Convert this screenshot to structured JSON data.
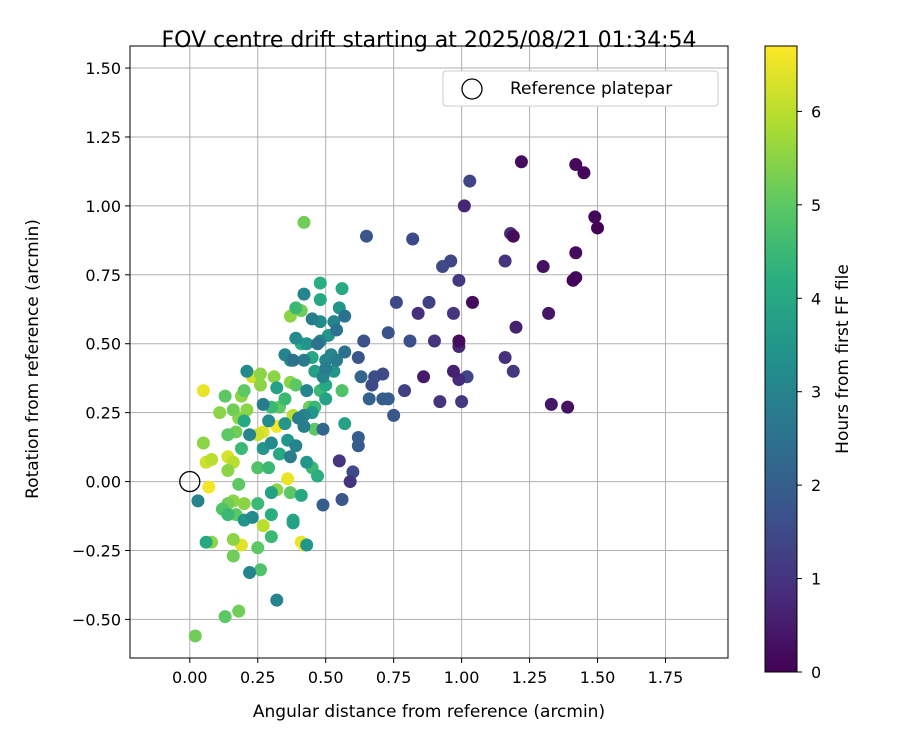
{
  "chart_data": {
    "type": "scatter",
    "title": "FOV centre drift starting at 2025/08/21 01:34:54",
    "xlabel": "Angular distance from reference (arcmin)",
    "ylabel": "Rotation from reference (arcmin)",
    "xlim": [
      -0.22,
      1.98
    ],
    "ylim": [
      -0.64,
      1.58
    ],
    "xticks": [
      "0.00",
      "0.25",
      "0.50",
      "0.75",
      "1.00",
      "1.25",
      "1.50",
      "1.75"
    ],
    "yticks": [
      "−0.50",
      "−0.25",
      "0.00",
      "0.25",
      "0.50",
      "0.75",
      "1.00",
      "1.25",
      "1.50"
    ],
    "grid": true,
    "legend": {
      "placement": "top-right",
      "entries": [
        "Reference platepar"
      ]
    },
    "reference_point": {
      "x": 0.0,
      "y": 0.0
    },
    "colorbar": {
      "label": "Hours from first FF file",
      "range": [
        0,
        6.7
      ],
      "ticks": [
        "0",
        "1",
        "2",
        "3",
        "4",
        "5",
        "6"
      ],
      "colormap": "viridis"
    },
    "points": [
      {
        "x": 1.22,
        "y": 1.16,
        "h": 0.2
      },
      {
        "x": 1.42,
        "y": 1.15,
        "h": 0.15
      },
      {
        "x": 1.45,
        "y": 1.12,
        "h": 0.1
      },
      {
        "x": 1.49,
        "y": 0.96,
        "h": 0.1
      },
      {
        "x": 1.5,
        "y": 0.92,
        "h": 0.05
      },
      {
        "x": 1.01,
        "y": 1.0,
        "h": 0.7
      },
      {
        "x": 1.03,
        "y": 1.09,
        "h": 1.4
      },
      {
        "x": 1.18,
        "y": 0.9,
        "h": 0.9
      },
      {
        "x": 1.19,
        "y": 0.89,
        "h": 0.2
      },
      {
        "x": 1.42,
        "y": 0.83,
        "h": 0.2
      },
      {
        "x": 1.42,
        "y": 0.74,
        "h": 0.15
      },
      {
        "x": 1.41,
        "y": 0.73,
        "h": 0.1
      },
      {
        "x": 1.3,
        "y": 0.78,
        "h": 0.3
      },
      {
        "x": 1.16,
        "y": 0.8,
        "h": 1.0
      },
      {
        "x": 0.65,
        "y": 0.89,
        "h": 1.8
      },
      {
        "x": 0.82,
        "y": 0.88,
        "h": 1.5
      },
      {
        "x": 0.96,
        "y": 0.8,
        "h": 1.4
      },
      {
        "x": 0.93,
        "y": 0.78,
        "h": 1.5
      },
      {
        "x": 0.99,
        "y": 0.73,
        "h": 1.1
      },
      {
        "x": 1.04,
        "y": 0.65,
        "h": 0.2
      },
      {
        "x": 0.76,
        "y": 0.65,
        "h": 1.5
      },
      {
        "x": 0.88,
        "y": 0.65,
        "h": 1.3
      },
      {
        "x": 0.84,
        "y": 0.61,
        "h": 0.9
      },
      {
        "x": 0.97,
        "y": 0.61,
        "h": 1.0
      },
      {
        "x": 1.2,
        "y": 0.56,
        "h": 0.6
      },
      {
        "x": 1.32,
        "y": 0.61,
        "h": 0.4
      },
      {
        "x": 0.73,
        "y": 0.54,
        "h": 1.7
      },
      {
        "x": 0.81,
        "y": 0.51,
        "h": 1.6
      },
      {
        "x": 0.9,
        "y": 0.51,
        "h": 1.0
      },
      {
        "x": 0.99,
        "y": 0.51,
        "h": 0.2
      },
      {
        "x": 0.99,
        "y": 0.49,
        "h": 0.7
      },
      {
        "x": 1.16,
        "y": 0.45,
        "h": 0.9
      },
      {
        "x": 1.19,
        "y": 0.4,
        "h": 1.1
      },
      {
        "x": 0.97,
        "y": 0.4,
        "h": 0.6
      },
      {
        "x": 0.99,
        "y": 0.37,
        "h": 0.8
      },
      {
        "x": 1.02,
        "y": 0.38,
        "h": 1.4
      },
      {
        "x": 0.86,
        "y": 0.38,
        "h": 0.5
      },
      {
        "x": 0.79,
        "y": 0.33,
        "h": 1.3
      },
      {
        "x": 0.92,
        "y": 0.29,
        "h": 1.0
      },
      {
        "x": 1.0,
        "y": 0.29,
        "h": 1.1
      },
      {
        "x": 1.33,
        "y": 0.28,
        "h": 0.4
      },
      {
        "x": 1.39,
        "y": 0.27,
        "h": 0.3
      },
      {
        "x": 0.62,
        "y": 0.45,
        "h": 1.8
      },
      {
        "x": 0.64,
        "y": 0.51,
        "h": 1.7
      },
      {
        "x": 0.68,
        "y": 0.38,
        "h": 1.6
      },
      {
        "x": 0.71,
        "y": 0.39,
        "h": 1.5
      },
      {
        "x": 0.67,
        "y": 0.35,
        "h": 1.5
      },
      {
        "x": 0.63,
        "y": 0.38,
        "h": 2.2
      },
      {
        "x": 0.66,
        "y": 0.3,
        "h": 2.1
      },
      {
        "x": 0.71,
        "y": 0.3,
        "h": 1.9
      },
      {
        "x": 0.73,
        "y": 0.3,
        "h": 2.0
      },
      {
        "x": 0.75,
        "y": 0.24,
        "h": 1.8
      },
      {
        "x": 0.62,
        "y": 0.16,
        "h": 2.0
      },
      {
        "x": 0.62,
        "y": 0.13,
        "h": 1.9
      },
      {
        "x": 0.55,
        "y": 0.075,
        "h": 1.0
      },
      {
        "x": 0.6,
        "y": 0.035,
        "h": 1.5
      },
      {
        "x": 0.56,
        "y": -0.065,
        "h": 1.8
      },
      {
        "x": 0.49,
        "y": -0.085,
        "h": 2.0
      },
      {
        "x": 0.59,
        "y": -0.0,
        "h": 1.0
      },
      {
        "x": 0.42,
        "y": 0.94,
        "h": 5.2
      },
      {
        "x": 0.48,
        "y": 0.72,
        "h": 4.2
      },
      {
        "x": 0.56,
        "y": 0.7,
        "h": 4.0
      },
      {
        "x": 0.42,
        "y": 0.68,
        "h": 3.0
      },
      {
        "x": 0.48,
        "y": 0.66,
        "h": 4.0
      },
      {
        "x": 0.55,
        "y": 0.63,
        "h": 3.5
      },
      {
        "x": 0.41,
        "y": 0.62,
        "h": 5.2
      },
      {
        "x": 0.37,
        "y": 0.6,
        "h": 5.5
      },
      {
        "x": 0.39,
        "y": 0.63,
        "h": 4.5
      },
      {
        "x": 0.45,
        "y": 0.59,
        "h": 2.8
      },
      {
        "x": 0.48,
        "y": 0.58,
        "h": 3.2
      },
      {
        "x": 0.53,
        "y": 0.58,
        "h": 3.0
      },
      {
        "x": 0.57,
        "y": 0.6,
        "h": 2.5
      },
      {
        "x": 0.54,
        "y": 0.55,
        "h": 2.5
      },
      {
        "x": 0.51,
        "y": 0.53,
        "h": 3.5
      },
      {
        "x": 0.39,
        "y": 0.52,
        "h": 3.2
      },
      {
        "x": 0.41,
        "y": 0.5,
        "h": 4.2
      },
      {
        "x": 0.43,
        "y": 0.5,
        "h": 3.5
      },
      {
        "x": 0.47,
        "y": 0.5,
        "h": 2.5
      },
      {
        "x": 0.48,
        "y": 0.51,
        "h": 3.0
      },
      {
        "x": 0.57,
        "y": 0.47,
        "h": 2.5
      },
      {
        "x": 0.52,
        "y": 0.46,
        "h": 3.0
      },
      {
        "x": 0.54,
        "y": 0.44,
        "h": 2.8
      },
      {
        "x": 0.5,
        "y": 0.44,
        "h": 3.0
      },
      {
        "x": 0.45,
        "y": 0.45,
        "h": 4.0
      },
      {
        "x": 0.35,
        "y": 0.46,
        "h": 3.0
      },
      {
        "x": 0.37,
        "y": 0.44,
        "h": 3.5
      },
      {
        "x": 0.38,
        "y": 0.44,
        "h": 2.5
      },
      {
        "x": 0.42,
        "y": 0.44,
        "h": 2.8
      },
      {
        "x": 0.5,
        "y": 0.41,
        "h": 2.8
      },
      {
        "x": 0.53,
        "y": 0.4,
        "h": 3.5
      },
      {
        "x": 0.46,
        "y": 0.4,
        "h": 3.8
      },
      {
        "x": 0.49,
        "y": 0.38,
        "h": 3.0
      },
      {
        "x": 0.5,
        "y": 0.35,
        "h": 4.0
      },
      {
        "x": 0.48,
        "y": 0.33,
        "h": 4.5
      },
      {
        "x": 0.43,
        "y": 0.33,
        "h": 3.0
      },
      {
        "x": 0.39,
        "y": 0.35,
        "h": 5.0
      },
      {
        "x": 0.37,
        "y": 0.36,
        "h": 5.5
      },
      {
        "x": 0.56,
        "y": 0.33,
        "h": 4.8
      },
      {
        "x": 0.5,
        "y": 0.3,
        "h": 3.8
      },
      {
        "x": 0.46,
        "y": 0.27,
        "h": 4.5
      },
      {
        "x": 0.44,
        "y": 0.27,
        "h": 5.2
      },
      {
        "x": 0.45,
        "y": 0.25,
        "h": 3.5
      },
      {
        "x": 0.42,
        "y": 0.24,
        "h": 3.0
      },
      {
        "x": 0.4,
        "y": 0.23,
        "h": 2.8
      },
      {
        "x": 0.38,
        "y": 0.24,
        "h": 6.0
      },
      {
        "x": 0.33,
        "y": 0.27,
        "h": 5.0
      },
      {
        "x": 0.35,
        "y": 0.3,
        "h": 4.5
      },
      {
        "x": 0.32,
        "y": 0.34,
        "h": 3.8
      },
      {
        "x": 0.31,
        "y": 0.38,
        "h": 5.5
      },
      {
        "x": 0.26,
        "y": 0.39,
        "h": 5.5
      },
      {
        "x": 0.23,
        "y": 0.38,
        "h": 6.2
      },
      {
        "x": 0.26,
        "y": 0.35,
        "h": 5.5
      },
      {
        "x": 0.21,
        "y": 0.4,
        "h": 3.2
      },
      {
        "x": 0.2,
        "y": 0.33,
        "h": 5.0
      },
      {
        "x": 0.19,
        "y": 0.31,
        "h": 5.5
      },
      {
        "x": 0.13,
        "y": 0.31,
        "h": 5.0
      },
      {
        "x": 0.05,
        "y": 0.33,
        "h": 6.5
      },
      {
        "x": 0.27,
        "y": 0.28,
        "h": 2.8
      },
      {
        "x": 0.3,
        "y": 0.27,
        "h": 4.5
      },
      {
        "x": 0.21,
        "y": 0.26,
        "h": 5.5
      },
      {
        "x": 0.16,
        "y": 0.26,
        "h": 5.2
      },
      {
        "x": 0.11,
        "y": 0.25,
        "h": 5.5
      },
      {
        "x": 0.18,
        "y": 0.23,
        "h": 5.5
      },
      {
        "x": 0.2,
        "y": 0.22,
        "h": 4.0
      },
      {
        "x": 0.29,
        "y": 0.22,
        "h": 3.2
      },
      {
        "x": 0.32,
        "y": 0.2,
        "h": 6.6
      },
      {
        "x": 0.35,
        "y": 0.21,
        "h": 3.5
      },
      {
        "x": 0.42,
        "y": 0.2,
        "h": 2.8
      },
      {
        "x": 0.46,
        "y": 0.19,
        "h": 5.0
      },
      {
        "x": 0.49,
        "y": 0.19,
        "h": 2.2
      },
      {
        "x": 0.57,
        "y": 0.21,
        "h": 3.8
      },
      {
        "x": 0.27,
        "y": 0.18,
        "h": 6.4
      },
      {
        "x": 0.17,
        "y": 0.18,
        "h": 5.2
      },
      {
        "x": 0.14,
        "y": 0.17,
        "h": 5.0
      },
      {
        "x": 0.22,
        "y": 0.17,
        "h": 3.0
      },
      {
        "x": 0.25,
        "y": 0.17,
        "h": 6.2
      },
      {
        "x": 0.36,
        "y": 0.15,
        "h": 3.5
      },
      {
        "x": 0.39,
        "y": 0.13,
        "h": 3.0
      },
      {
        "x": 0.3,
        "y": 0.14,
        "h": 3.2
      },
      {
        "x": 0.27,
        "y": 0.12,
        "h": 3.5
      },
      {
        "x": 0.19,
        "y": 0.12,
        "h": 4.5
      },
      {
        "x": 0.05,
        "y": 0.14,
        "h": 5.5
      },
      {
        "x": 0.33,
        "y": 0.1,
        "h": 4.0
      },
      {
        "x": 0.37,
        "y": 0.09,
        "h": 2.8
      },
      {
        "x": 0.43,
        "y": 0.07,
        "h": 3.5
      },
      {
        "x": 0.45,
        "y": 0.05,
        "h": 4.5
      },
      {
        "x": 0.29,
        "y": 0.05,
        "h": 4.5
      },
      {
        "x": 0.25,
        "y": 0.05,
        "h": 4.8
      },
      {
        "x": 0.16,
        "y": 0.07,
        "h": 6.0
      },
      {
        "x": 0.14,
        "y": 0.09,
        "h": 6.3
      },
      {
        "x": 0.08,
        "y": 0.08,
        "h": 6.0
      },
      {
        "x": 0.06,
        "y": 0.07,
        "h": 6.2
      },
      {
        "x": 0.14,
        "y": 0.04,
        "h": 5.5
      },
      {
        "x": 0.47,
        "y": 0.02,
        "h": 4.2
      },
      {
        "x": 0.36,
        "y": 0.01,
        "h": 6.5
      },
      {
        "x": 0.18,
        "y": -0.01,
        "h": 5.0
      },
      {
        "x": 0.07,
        "y": -0.02,
        "h": 6.6
      },
      {
        "x": 0.3,
        "y": -0.04,
        "h": 3.8
      },
      {
        "x": 0.32,
        "y": -0.03,
        "h": 5.5
      },
      {
        "x": 0.37,
        "y": -0.04,
        "h": 5.0
      },
      {
        "x": 0.41,
        "y": -0.05,
        "h": 4.0
      },
      {
        "x": 0.03,
        "y": -0.07,
        "h": 3.0
      },
      {
        "x": 0.14,
        "y": -0.08,
        "h": 5.2
      },
      {
        "x": 0.16,
        "y": -0.07,
        "h": 5.5
      },
      {
        "x": 0.2,
        "y": -0.08,
        "h": 5.5
      },
      {
        "x": 0.25,
        "y": -0.08,
        "h": 4.5
      },
      {
        "x": 0.12,
        "y": -0.1,
        "h": 4.8
      },
      {
        "x": 0.14,
        "y": -0.12,
        "h": 4.5
      },
      {
        "x": 0.17,
        "y": -0.12,
        "h": 5.0
      },
      {
        "x": 0.2,
        "y": -0.14,
        "h": 3.5
      },
      {
        "x": 0.23,
        "y": -0.13,
        "h": 3.2
      },
      {
        "x": 0.27,
        "y": -0.16,
        "h": 6.0
      },
      {
        "x": 0.3,
        "y": -0.12,
        "h": 4.2
      },
      {
        "x": 0.38,
        "y": -0.14,
        "h": 4.0
      },
      {
        "x": 0.38,
        "y": -0.15,
        "h": 3.8
      },
      {
        "x": 0.06,
        "y": -0.22,
        "h": 4.0
      },
      {
        "x": 0.08,
        "y": -0.22,
        "h": 5.5
      },
      {
        "x": 0.16,
        "y": -0.21,
        "h": 5.5
      },
      {
        "x": 0.19,
        "y": -0.23,
        "h": 6.4
      },
      {
        "x": 0.25,
        "y": -0.24,
        "h": 5.0
      },
      {
        "x": 0.3,
        "y": -0.2,
        "h": 4.5
      },
      {
        "x": 0.41,
        "y": -0.22,
        "h": 6.5
      },
      {
        "x": 0.42,
        "y": -0.23,
        "h": 6.6
      },
      {
        "x": 0.43,
        "y": -0.23,
        "h": 3.5
      },
      {
        "x": 0.16,
        "y": -0.27,
        "h": 5.2
      },
      {
        "x": 0.22,
        "y": -0.33,
        "h": 3.0
      },
      {
        "x": 0.26,
        "y": -0.32,
        "h": 4.8
      },
      {
        "x": 0.32,
        "y": -0.43,
        "h": 3.0
      },
      {
        "x": 0.13,
        "y": -0.49,
        "h": 5.0
      },
      {
        "x": 0.18,
        "y": -0.47,
        "h": 5.2
      },
      {
        "x": 0.02,
        "y": -0.56,
        "h": 5.2
      }
    ]
  }
}
